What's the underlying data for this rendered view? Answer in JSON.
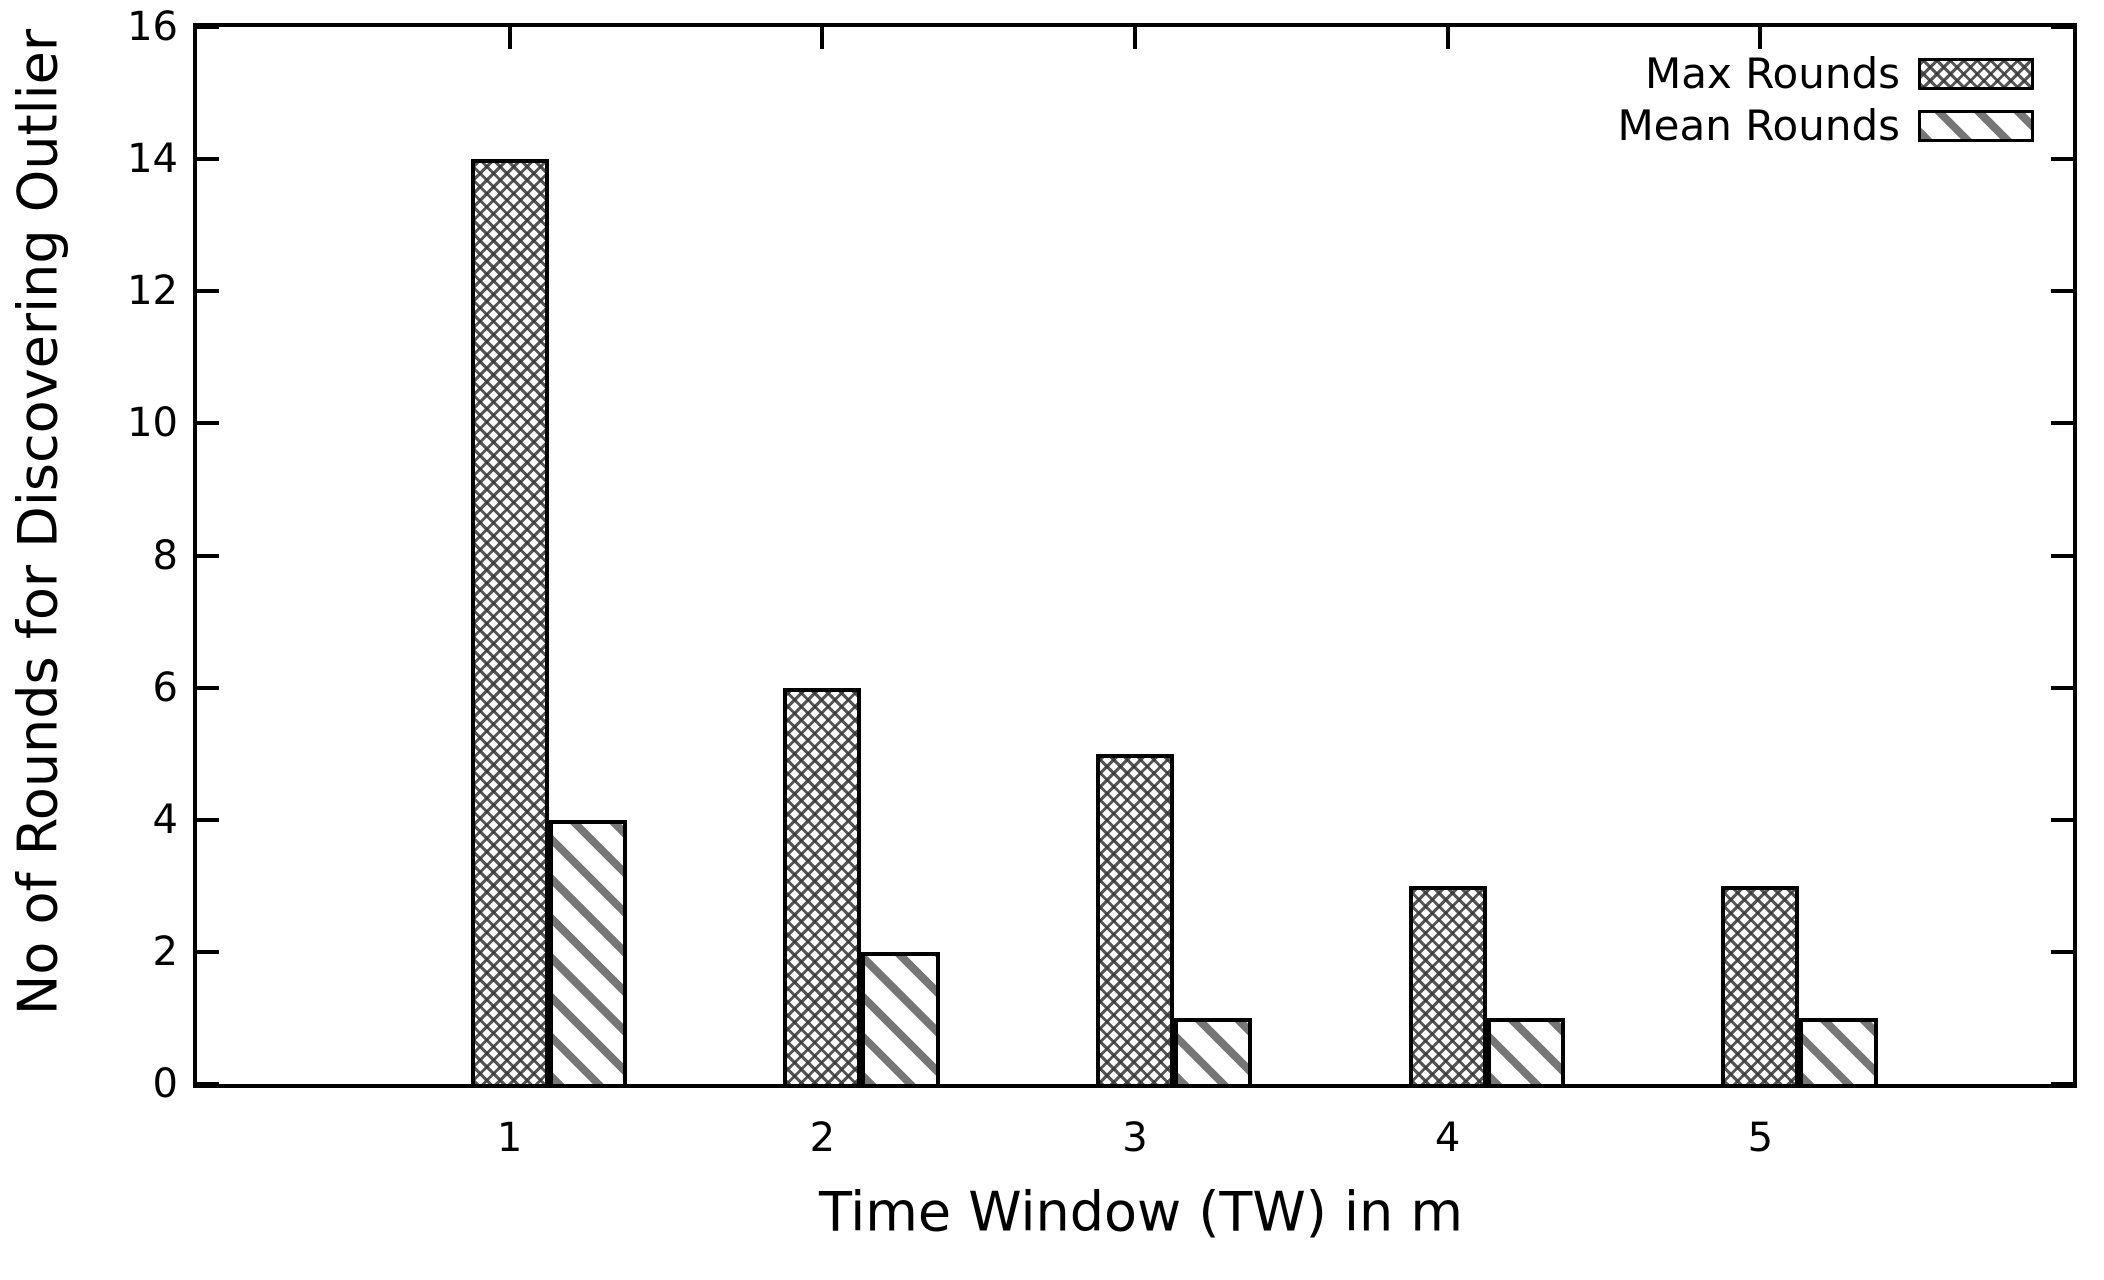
{
  "chart_data": {
    "type": "bar",
    "title": "",
    "categories": [
      "1",
      "2",
      "3",
      "4",
      "5"
    ],
    "series": [
      {
        "name": "Max Rounds",
        "pattern": "crosshatch",
        "values": [
          14,
          6,
          5,
          3,
          3
        ]
      },
      {
        "name": "Mean Rounds",
        "pattern": "diagonal-stripes",
        "values": [
          4,
          2,
          1,
          1,
          1
        ]
      }
    ],
    "xlabel": "Time Window (TW) in m",
    "ylabel": "No of Rounds for Discovering Outlier",
    "xlim": [
      0,
      6
    ],
    "ylim": [
      0,
      16
    ],
    "ytick_step": 2,
    "yticks": [
      0,
      2,
      4,
      6,
      8,
      10,
      12,
      14,
      16
    ],
    "legend_position": "top-right",
    "grid": false
  },
  "colors": {
    "axis": "#000000",
    "text": "#000000",
    "pattern_ink": "#6b6b6b",
    "background": "#ffffff"
  }
}
